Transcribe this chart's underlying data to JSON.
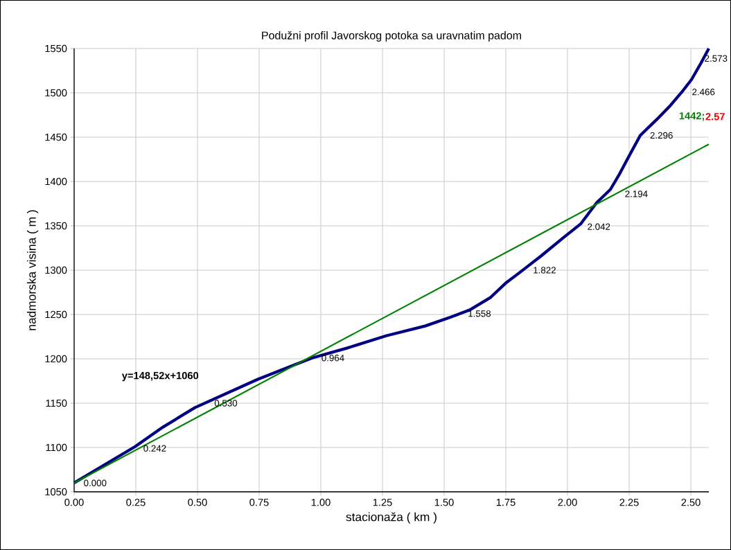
{
  "chart_data": {
    "type": "line",
    "title": "Podužni profil Javorskog potoka sa uravnatim padom",
    "xlabel": "stacionaža ( km )",
    "ylabel": "nadmorska visina ( m )",
    "series": [
      {
        "color": "#000080",
        "x": [
          0,
          0.247,
          0.36,
          0.49,
          0.745,
          0.9,
          0.965,
          1.105,
          1.265,
          1.423,
          1.527,
          1.603,
          1.687,
          1.752,
          1.8,
          1.893,
          1.985,
          2.053,
          2.118,
          2.174,
          2.21,
          2.25,
          2.295,
          2.362,
          2.418,
          2.464,
          2.503,
          2.54,
          2.573
        ],
        "values": [
          1060,
          1101,
          1123,
          1145,
          1177,
          1194,
          1201,
          1212,
          1226,
          1237,
          1247,
          1255,
          1269,
          1286,
          1296,
          1316,
          1337,
          1352,
          1376,
          1391,
          1408,
          1429,
          1452,
          1470,
          1486,
          1501,
          1515,
          1533,
          1550
        ]
      },
      {
        "color": "#008000",
        "x": [
          0,
          2.573
        ],
        "values": [
          1060,
          1442
        ]
      }
    ],
    "annotations": [
      "y=148,52x+1060",
      {
        "text": "0.000",
        "x": 0,
        "y": 1060
      },
      {
        "text": "0.242",
        "x": 0.242,
        "y": 1099
      },
      {
        "text": "0.530",
        "x": 0.53,
        "y": 1150
      },
      {
        "text": "0.964",
        "x": 0.964,
        "y": 1201
      },
      {
        "text": "1.558",
        "x": 1.558,
        "y": 1251
      },
      {
        "text": "1.822",
        "x": 1.822,
        "y": 1300
      },
      {
        "text": "2.042",
        "x": 2.042,
        "y": 1349
      },
      {
        "text": "2.194",
        "x": 2.194,
        "y": 1386
      },
      {
        "text": "2.296",
        "x": 2.296,
        "y": 1452
      },
      {
        "text": "2.466",
        "x": 2.466,
        "y": 1501
      },
      {
        "text": "2.573",
        "x": 2.573,
        "y": 1550
      },
      {
        "text": "1442;",
        "x": 2.573,
        "y": 1442
      },
      {
        "text": "2.57",
        "x": 2.573,
        "y": 1442
      }
    ],
    "xlim": [
      0,
      2.573
    ],
    "ylim": [
      1050,
      1550
    ],
    "xticks": [
      {
        "value": 0,
        "label": "0.00"
      },
      {
        "value": 0.25,
        "label": "0.25"
      },
      {
        "value": 0.5,
        "label": "0.50"
      },
      {
        "value": 0.75,
        "label": "0.75"
      },
      {
        "value": 1,
        "label": "1.00"
      },
      {
        "value": 1.25,
        "label": "1.25"
      },
      {
        "value": 1.5,
        "label": "1.50"
      },
      {
        "value": 1.75,
        "label": "1.75"
      },
      {
        "value": 2,
        "label": "2.00"
      },
      {
        "value": 2.25,
        "label": "2.25"
      },
      {
        "value": 2.5,
        "label": "2.50"
      }
    ],
    "yticks": [
      1050,
      1100,
      1150,
      1200,
      1250,
      1300,
      1350,
      1400,
      1450,
      1500,
      1550
    ],
    "grid": true,
    "marker": "none",
    "line_style": "solid"
  }
}
